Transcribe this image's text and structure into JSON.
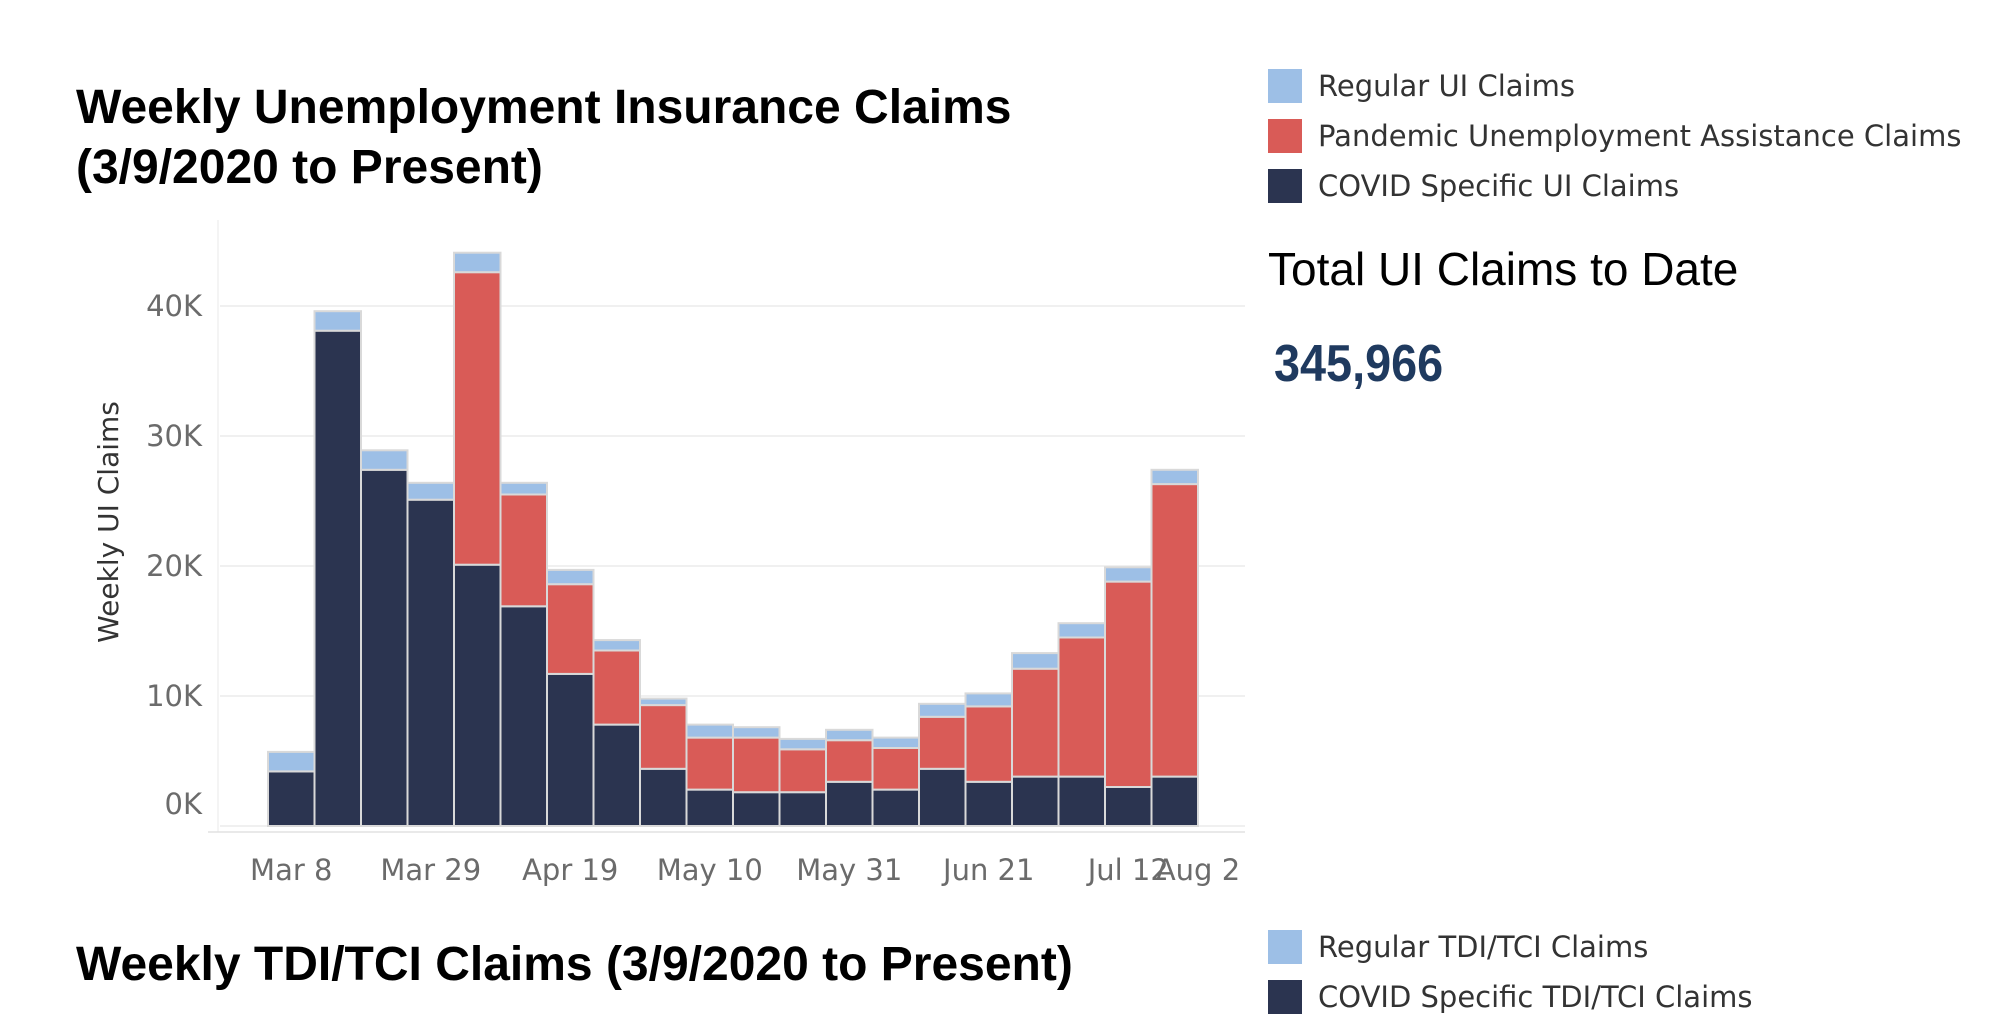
{
  "titles": {
    "ui_chart": "Weekly Unemployment Insurance Claims (3/9/2020 to Present)",
    "tdi_chart": "Weekly TDI/TCI Claims (3/9/2020 to Present)"
  },
  "total": {
    "label": "Total UI Claims to Date",
    "value": "345,966"
  },
  "legend_ui": [
    {
      "label": "Regular UI Claims",
      "color": "#9dbfe6"
    },
    {
      "label": "Pandemic Unemployment Assistance Claims",
      "color": "#d95b57"
    },
    {
      "label": "COVID Specific UI Claims",
      "color": "#2b3450"
    }
  ],
  "legend_tdi": [
    {
      "label": "Regular TDI/TCI Claims",
      "color": "#9dbfe6"
    },
    {
      "label": "COVID Specific TDI/TCI Claims",
      "color": "#2b3450"
    }
  ],
  "chart_data": {
    "type": "bar",
    "stacked": true,
    "ylabel": "Weekly UI Claims",
    "xlabel": "",
    "ylim": [
      0,
      45000
    ],
    "yticks": [
      0,
      10000,
      20000,
      30000,
      40000
    ],
    "ytick_labels": [
      "0K",
      "10K",
      "20K",
      "30K",
      "40K"
    ],
    "grid": true,
    "categories": [
      "Mar 8",
      "Mar 15",
      "Mar 22",
      "Mar 29",
      "Apr 5",
      "Apr 12",
      "Apr 19",
      "Apr 26",
      "May 3",
      "May 10",
      "May 17",
      "May 24",
      "May 31",
      "Jun 7",
      "Jun 14",
      "Jun 21",
      "Jun 28",
      "Jul 5",
      "Jul 12",
      "Jul 19",
      "Aug 2"
    ],
    "xtick_labels": [
      "Mar 8",
      "Mar 29",
      "Apr 19",
      "May 10",
      "May 31",
      "Jun 21",
      "Jul 12",
      "Aug 2"
    ],
    "series": [
      {
        "name": "COVID Specific UI Claims",
        "color": "#2b3450",
        "values": [
          4200,
          38100,
          27400,
          25100,
          20100,
          16900,
          11700,
          7800,
          4400,
          2800,
          2600,
          2600,
          3400,
          2800,
          4400,
          3400,
          3800,
          3800,
          3000,
          3800,
          0
        ]
      },
      {
        "name": "Pandemic Unemployment Assistance Claims",
        "color": "#d95b57",
        "values": [
          0,
          0,
          0,
          0,
          22500,
          8600,
          6900,
          5700,
          4900,
          4000,
          4200,
          3300,
          3200,
          3200,
          4000,
          5800,
          8300,
          10700,
          15800,
          22500,
          0
        ]
      },
      {
        "name": "Regular UI Claims",
        "color": "#9dbfe6",
        "values": [
          1500,
          1500,
          1500,
          1300,
          1500,
          900,
          1100,
          800,
          500,
          1000,
          800,
          800,
          800,
          800,
          1000,
          1000,
          1200,
          1100,
          1100,
          1100,
          0
        ]
      }
    ]
  }
}
